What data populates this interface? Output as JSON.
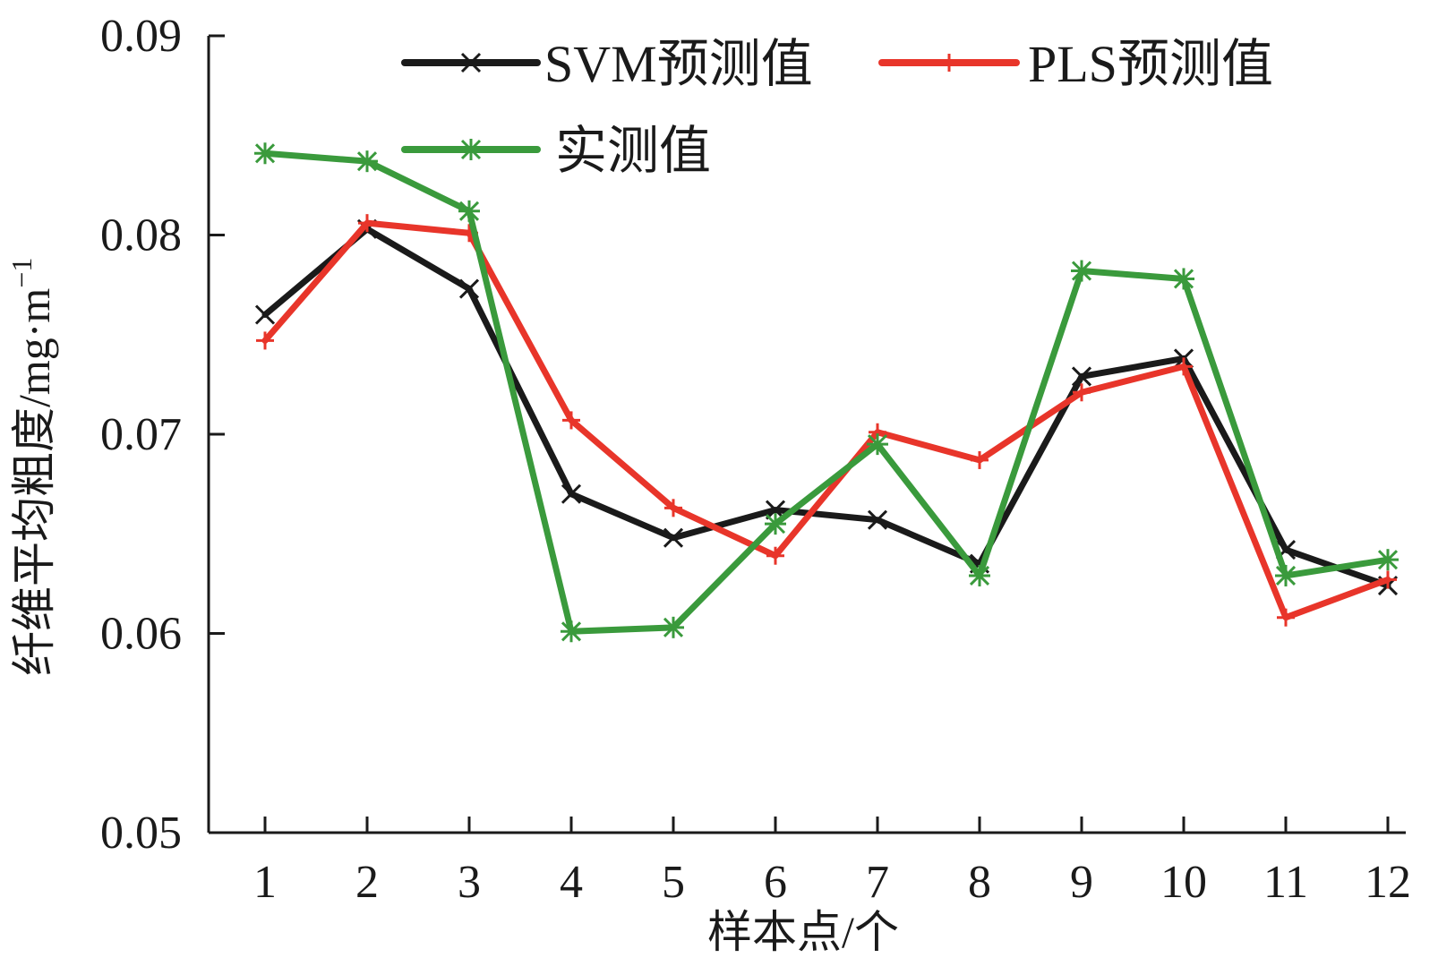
{
  "chart_data": {
    "type": "line",
    "title": "",
    "xlabel": "样本点/个",
    "ylabel_main": "纤维平均粗度/mg·m",
    "ylabel_sup": "−1",
    "categories": [
      "1",
      "2",
      "3",
      "4",
      "5",
      "6",
      "7",
      "8",
      "9",
      "10",
      "11",
      "12"
    ],
    "ylim": [
      0.05,
      0.09
    ],
    "yticks": [
      0.05,
      0.06,
      0.07,
      0.08,
      0.09
    ],
    "ytick_labels": [
      "0.05",
      "0.06",
      "0.07",
      "0.08",
      "0.09"
    ],
    "grid": false,
    "legend_position": "top",
    "series": [
      {
        "name": "SVM预测值",
        "color": "#1a1a1a",
        "marker": "x",
        "values": [
          0.076,
          0.0803,
          0.0773,
          0.067,
          0.0648,
          0.0662,
          0.0657,
          0.0635,
          0.0729,
          0.0738,
          0.0642,
          0.0624
        ]
      },
      {
        "name": "PLS预测值",
        "color": "#e8352a",
        "marker": "plus",
        "values": [
          0.0747,
          0.0806,
          0.0801,
          0.0707,
          0.0663,
          0.0639,
          0.0701,
          0.0687,
          0.0721,
          0.0734,
          0.0608,
          0.0627
        ]
      },
      {
        "name": "实测值",
        "color": "#3a9a3c",
        "marker": "star",
        "values": [
          0.0841,
          0.0837,
          0.0812,
          0.0601,
          0.0603,
          0.0655,
          0.0695,
          0.0629,
          0.0782,
          0.0778,
          0.0629,
          0.0637
        ]
      }
    ]
  }
}
